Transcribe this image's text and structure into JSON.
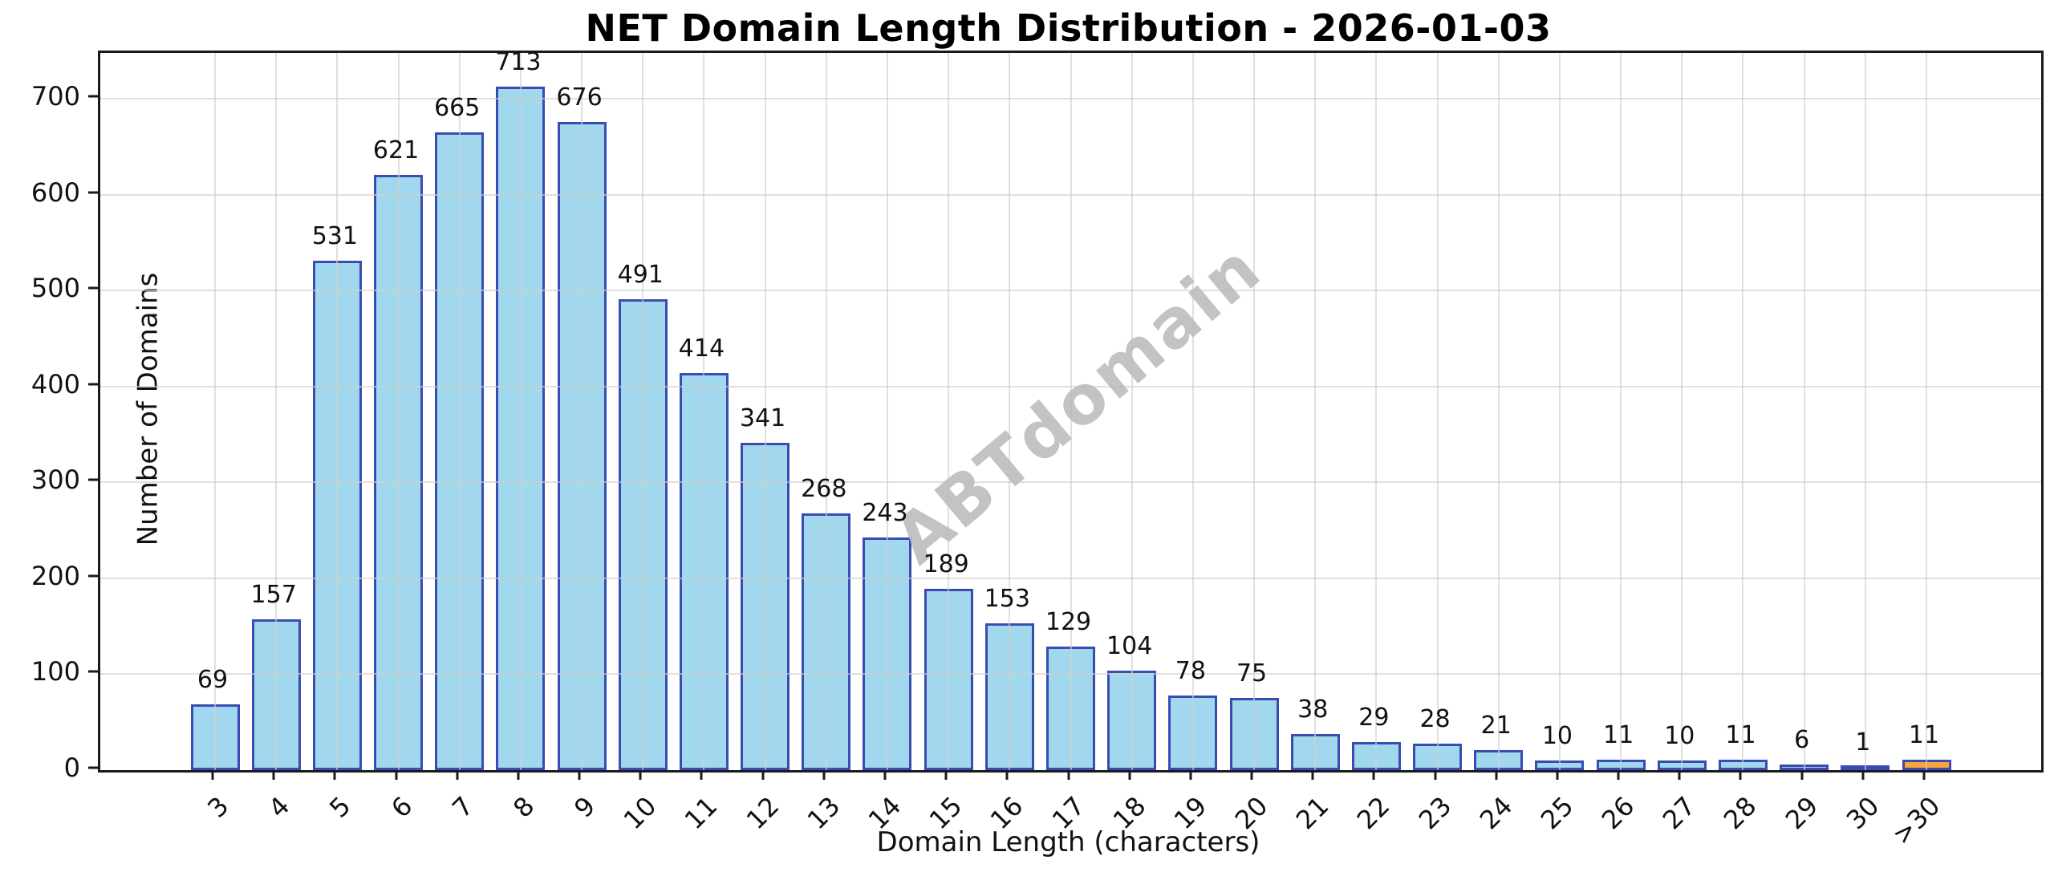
{
  "title": "NET Domain Length Distribution - 2026-01-03",
  "watermark": "ABTdomain",
  "chart_data": {
    "type": "bar",
    "title": "NET Domain Length Distribution - 2026-01-03",
    "xlabel": "Domain Length (characters)",
    "ylabel": "Number of Domains",
    "categories": [
      "3",
      "4",
      "5",
      "6",
      "7",
      "8",
      "9",
      "10",
      "11",
      "12",
      "13",
      "14",
      "15",
      "16",
      "17",
      "18",
      "19",
      "20",
      "21",
      "22",
      "23",
      "24",
      "25",
      "26",
      "27",
      "28",
      "29",
      "30",
      ">30"
    ],
    "values": [
      69,
      157,
      531,
      621,
      665,
      713,
      676,
      491,
      414,
      341,
      268,
      243,
      189,
      153,
      129,
      104,
      78,
      75,
      38,
      29,
      28,
      21,
      10,
      11,
      10,
      11,
      6,
      1,
      11
    ],
    "bar_labels_shown": true,
    "ylim": [
      0,
      748
    ],
    "yticks": [
      0,
      100,
      200,
      300,
      400,
      500,
      600,
      700
    ],
    "grid": true,
    "legend": "none",
    "bar_color": "#A2D8ED",
    "bar_edge_color": "#3A4CB4",
    "highlight_category": ">30",
    "highlight_color": "#F6A73B",
    "grid_color": "rgba(208,208,208,0.65)",
    "watermark_color": "rgba(185,185,185,0.85)"
  }
}
